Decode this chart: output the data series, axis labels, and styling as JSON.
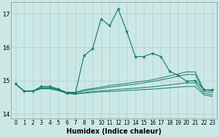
{
  "background_color": "#cce8e6",
  "grid_color": "#aed4d0",
  "line_color": "#1a7a6e",
  "xlabel": "Humidex (Indice chaleur)",
  "xlabel_fontsize": 7,
  "xlim": [
    -0.5,
    23.5
  ],
  "ylim": [
    13.85,
    17.35
  ],
  "yticks": [
    14,
    15,
    16,
    17
  ],
  "xticks": [
    0,
    1,
    2,
    3,
    4,
    5,
    6,
    7,
    8,
    9,
    10,
    11,
    12,
    13,
    14,
    15,
    16,
    17,
    18,
    19,
    20,
    21,
    22,
    23
  ],
  "lines": [
    {
      "x": [
        0,
        1,
        2,
        3,
        4,
        5,
        6,
        7,
        8,
        9,
        10,
        11,
        12,
        13,
        14,
        15,
        16,
        17,
        18,
        19,
        20,
        21,
        22,
        23
      ],
      "y": [
        14.9,
        14.68,
        14.68,
        14.82,
        14.82,
        14.75,
        14.62,
        14.62,
        15.75,
        15.95,
        16.85,
        16.65,
        17.15,
        16.48,
        15.72,
        15.72,
        15.82,
        15.72,
        15.28,
        15.15,
        14.98,
        15.0,
        14.72,
        14.72
      ],
      "marker": true
    },
    {
      "x": [
        0,
        1,
        2,
        3,
        4,
        5,
        6,
        7,
        8,
        9,
        10,
        11,
        12,
        13,
        14,
        15,
        16,
        17,
        18,
        19,
        20,
        21,
        22,
        23
      ],
      "y": [
        14.9,
        14.68,
        14.68,
        14.78,
        14.78,
        14.73,
        14.65,
        14.65,
        14.72,
        14.76,
        14.8,
        14.85,
        14.88,
        14.91,
        14.95,
        14.98,
        15.02,
        15.08,
        15.14,
        15.2,
        15.26,
        15.26,
        14.73,
        14.68
      ],
      "marker": false
    },
    {
      "x": [
        0,
        1,
        2,
        3,
        4,
        5,
        6,
        7,
        8,
        9,
        10,
        11,
        12,
        13,
        14,
        15,
        16,
        17,
        18,
        19,
        20,
        21,
        22,
        23
      ],
      "y": [
        14.9,
        14.68,
        14.68,
        14.78,
        14.78,
        14.72,
        14.63,
        14.63,
        14.69,
        14.73,
        14.76,
        14.8,
        14.83,
        14.86,
        14.89,
        14.93,
        14.97,
        15.02,
        15.07,
        15.13,
        15.18,
        15.18,
        14.68,
        14.63
      ],
      "marker": false
    },
    {
      "x": [
        0,
        1,
        2,
        3,
        4,
        5,
        6,
        7,
        8,
        9,
        10,
        11,
        12,
        13,
        14,
        15,
        16,
        17,
        18,
        19,
        20,
        21,
        22,
        23
      ],
      "y": [
        14.9,
        14.68,
        14.68,
        14.76,
        14.76,
        14.7,
        14.62,
        14.6,
        14.64,
        14.67,
        14.69,
        14.71,
        14.73,
        14.75,
        14.77,
        14.79,
        14.81,
        14.84,
        14.87,
        14.9,
        14.93,
        14.93,
        14.62,
        14.57
      ],
      "marker": false
    },
    {
      "x": [
        0,
        1,
        2,
        3,
        4,
        5,
        6,
        7,
        8,
        9,
        10,
        11,
        12,
        13,
        14,
        15,
        16,
        17,
        18,
        19,
        20,
        21,
        22,
        23
      ],
      "y": [
        14.9,
        14.68,
        14.68,
        14.75,
        14.75,
        14.7,
        14.61,
        14.59,
        14.62,
        14.64,
        14.66,
        14.67,
        14.68,
        14.7,
        14.71,
        14.73,
        14.74,
        14.76,
        14.78,
        14.8,
        14.82,
        14.82,
        14.57,
        14.52
      ],
      "marker": false
    }
  ]
}
